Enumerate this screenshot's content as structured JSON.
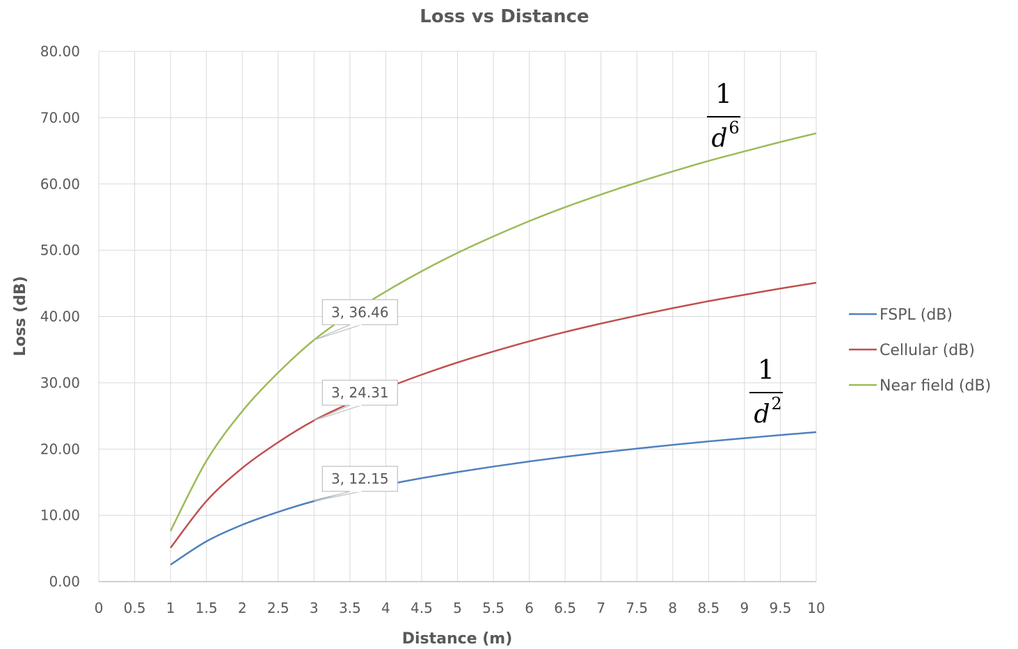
{
  "chart_data": {
    "type": "line",
    "title": "Loss vs Distance",
    "xlabel": "Distance (m)",
    "ylabel": "Loss (dB)",
    "xlim": [
      0,
      10
    ],
    "ylim": [
      0,
      80
    ],
    "grid": true,
    "legend_position": "right",
    "x_ticks": [
      "0",
      "0.5",
      "1",
      "1.5",
      "2",
      "2.5",
      "3",
      "3.5",
      "4",
      "4.5",
      "5",
      "5.5",
      "6",
      "6.5",
      "7",
      "7.5",
      "8",
      "8.5",
      "9",
      "9.5",
      "10"
    ],
    "y_ticks": [
      "0.00",
      "10.00",
      "20.00",
      "30.00",
      "40.00",
      "50.00",
      "60.00",
      "70.00",
      "80.00"
    ],
    "x": [
      1,
      1.5,
      2,
      2.5,
      3,
      3.5,
      4,
      4.5,
      5,
      5.5,
      6,
      6.5,
      7,
      7.5,
      8,
      8.5,
      9,
      9.5,
      10
    ],
    "series": [
      {
        "name": "FSPL (dB)",
        "color": "#4f81bd",
        "values": [
          2.55,
          6.07,
          8.57,
          10.51,
          12.15,
          13.46,
          14.59,
          15.61,
          16.53,
          17.36,
          18.13,
          18.83,
          19.47,
          20.07,
          20.63,
          21.16,
          21.64,
          22.11,
          22.55
        ]
      },
      {
        "name": "Cellular (dB)",
        "color": "#c0504d",
        "values": [
          5.1,
          12.14,
          17.14,
          21.02,
          24.31,
          26.92,
          29.18,
          31.22,
          33.06,
          34.72,
          36.26,
          37.66,
          38.94,
          40.14,
          41.26,
          42.32,
          43.28,
          44.22,
          45.1
        ]
      },
      {
        "name": "Near field (dB)",
        "color": "#9bbb59",
        "values": [
          7.65,
          18.21,
          25.71,
          31.53,
          36.46,
          40.38,
          43.77,
          46.83,
          49.59,
          52.08,
          54.39,
          56.49,
          58.41,
          60.21,
          61.89,
          63.48,
          64.92,
          66.33,
          67.65
        ]
      }
    ],
    "data_labels": [
      {
        "series": "Near field (dB)",
        "x": 3,
        "y": 36.46,
        "text": "3, 36.46"
      },
      {
        "series": "Cellular (dB)",
        "x": 3,
        "y": 24.31,
        "text": "3, 24.31"
      },
      {
        "series": "FSPL (dB)",
        "x": 3,
        "y": 12.15,
        "text": "3, 12.15"
      }
    ],
    "annotations": [
      {
        "near_series": "Near field (dB)",
        "numerator": "1",
        "base": "d",
        "exponent": "6"
      },
      {
        "near_series": "FSPL (dB)",
        "numerator": "1",
        "base": "d",
        "exponent": "2"
      }
    ]
  }
}
